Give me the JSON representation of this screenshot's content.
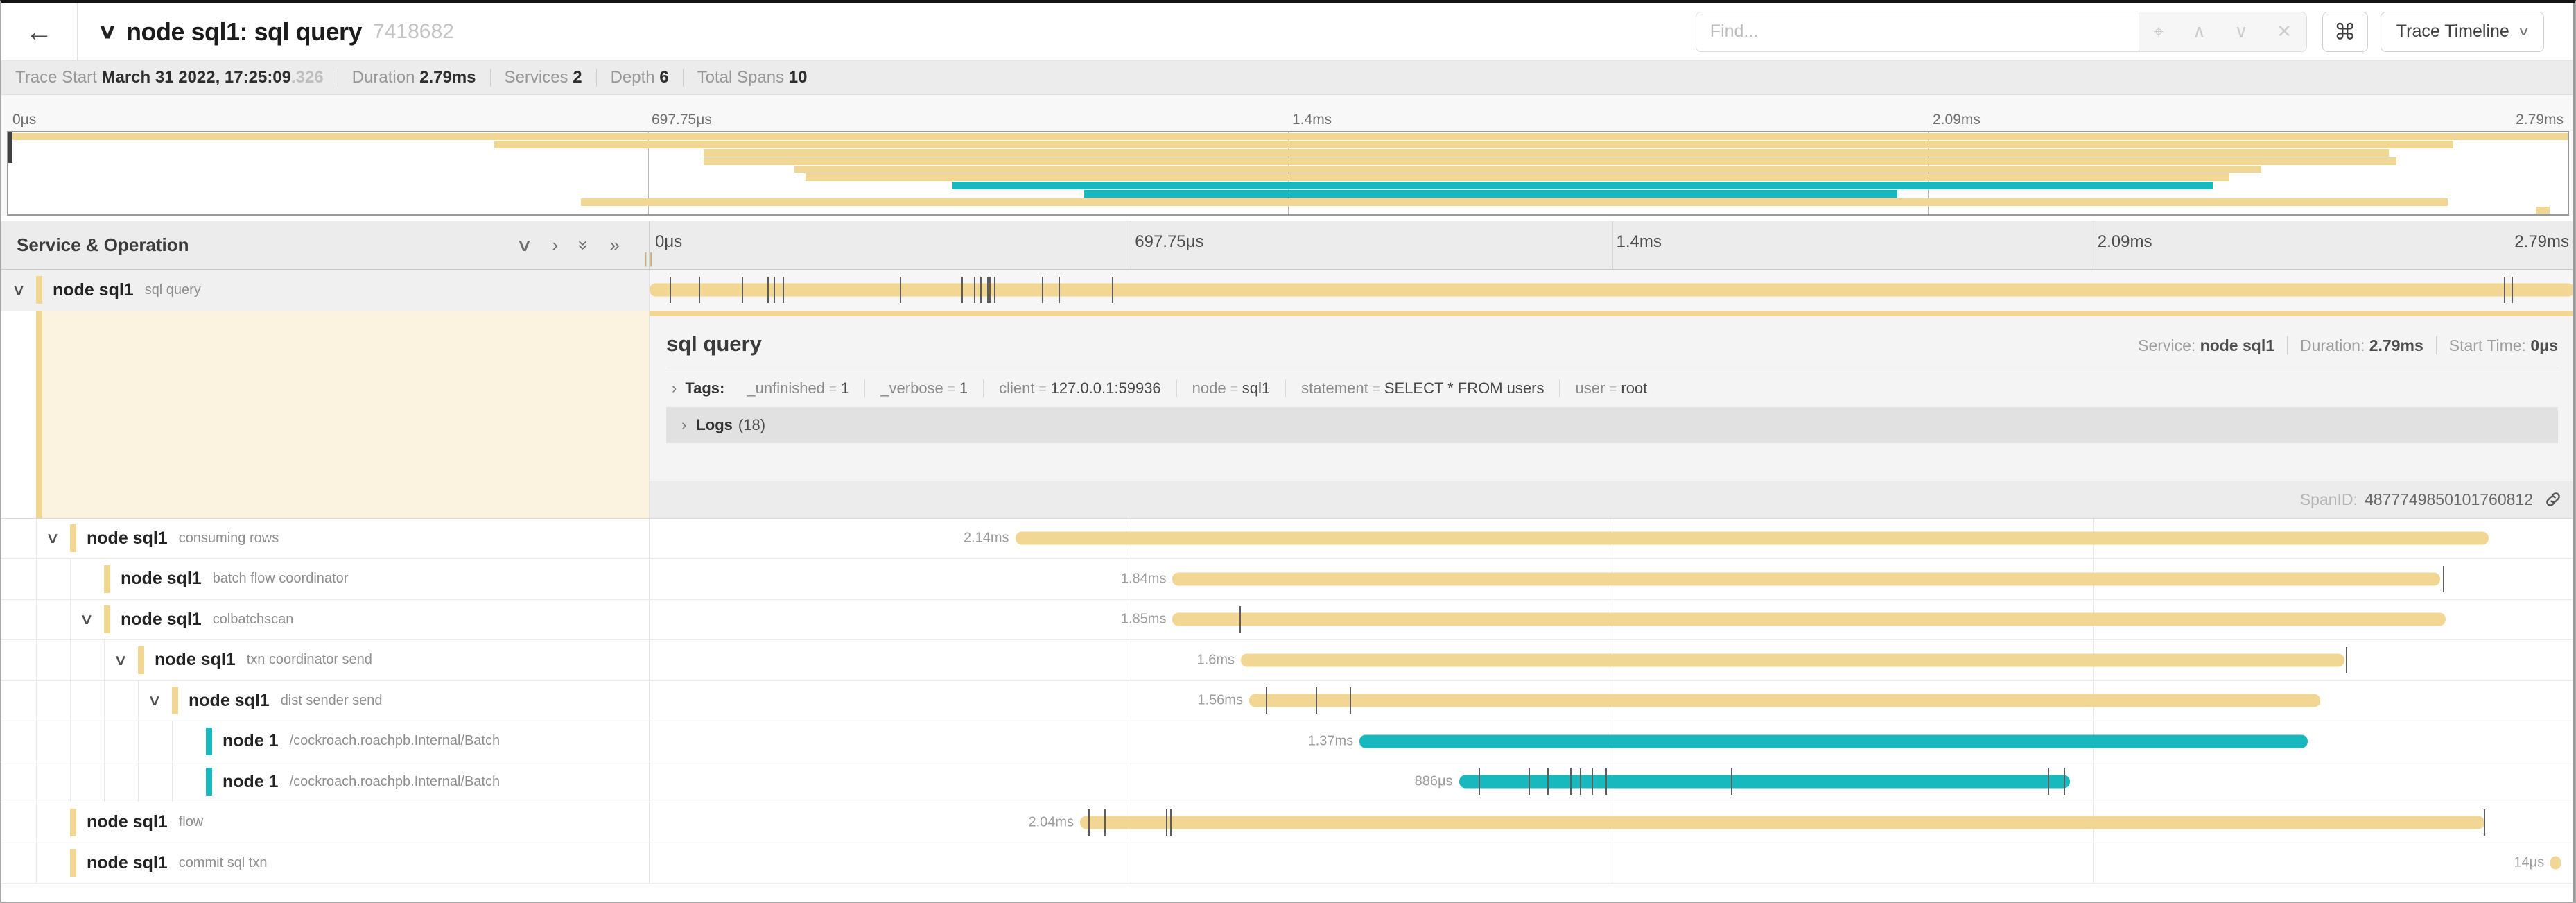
{
  "header": {
    "back_icon": "←",
    "collapse_chevron": "∨",
    "title": "node sql1: sql query",
    "trace_id_short": "7418682",
    "find_placeholder": "Find...",
    "find_icons": {
      "locate": "⌖",
      "prev": "∧",
      "next": "∨",
      "clear": "✕"
    },
    "shortcuts_icon": "⌘",
    "view_selector_label": "Trace Timeline",
    "view_selector_chevron": "∨"
  },
  "trace_meta": {
    "trace_start_label": "Trace Start",
    "trace_start_value": "March 31 2022, 17:25:09",
    "trace_start_fraction": ".326",
    "duration_label": "Duration",
    "duration_value": "2.79ms",
    "services_label": "Services",
    "services_value": "2",
    "depth_label": "Depth",
    "depth_value": "6",
    "total_spans_label": "Total Spans",
    "total_spans_value": "10"
  },
  "timeline_axis": {
    "ticks": [
      "0μs",
      "697.75μs",
      "1.4ms",
      "2.09ms",
      "2.79ms"
    ]
  },
  "columns_header": {
    "title": "Service & Operation",
    "icons": {
      "collapse_one": "∨",
      "expand_one": "›",
      "collapse_all": "»",
      "expand_all": "»"
    },
    "grip": "||"
  },
  "colors": {
    "tan": "#f2d694",
    "teal": "#17b8be",
    "tick": "#5d5d5d",
    "detail_cream": "#fbf3df"
  },
  "total_ms": 2.79,
  "spans": [
    {
      "service": "node sql1",
      "operation": "sql query",
      "depth": 0,
      "color": "tan",
      "start_ms": 0,
      "end_ms": 2.79,
      "duration_label": "",
      "ticks": [
        0.029,
        0.071,
        0.134,
        0.171,
        0.18,
        0.193,
        0.363,
        0.452,
        0.47,
        0.479,
        0.489,
        0.492,
        0.499,
        0.569,
        0.593,
        0.67,
        2.688,
        2.699
      ],
      "has_children": true,
      "selected": true
    },
    {
      "service": "node sql1",
      "operation": "consuming rows",
      "depth": 1,
      "color": "tan",
      "start_ms": 0.53,
      "end_ms": 2.665,
      "duration_label": "2.14ms",
      "ticks": [],
      "has_children": true,
      "selected": false
    },
    {
      "service": "node sql1",
      "operation": "batch flow coordinator",
      "depth": 2,
      "color": "tan",
      "start_ms": 0.758,
      "end_ms": 2.595,
      "duration_label": "1.84ms",
      "ticks": [
        2.599
      ],
      "has_children": false,
      "selected": false
    },
    {
      "service": "node sql1",
      "operation": "colbatchscan",
      "depth": 2,
      "color": "tan",
      "start_ms": 0.758,
      "end_ms": 2.603,
      "duration_label": "1.85ms",
      "ticks": [
        0.855
      ],
      "has_children": true,
      "selected": false
    },
    {
      "service": "node sql1",
      "operation": "txn coordinator send",
      "depth": 3,
      "color": "tan",
      "start_ms": 0.857,
      "end_ms": 2.456,
      "duration_label": "1.6ms",
      "ticks": [
        2.458
      ],
      "has_children": true,
      "selected": false
    },
    {
      "service": "node sql1",
      "operation": "dist sender send",
      "depth": 4,
      "color": "tan",
      "start_ms": 0.869,
      "end_ms": 2.421,
      "duration_label": "1.56ms",
      "ticks": [
        0.893,
        0.965,
        1.015
      ],
      "has_children": true,
      "selected": false
    },
    {
      "service": "node 1",
      "operation": "/cockroach.roachpb.Internal/Batch",
      "depth": 5,
      "color": "teal",
      "start_ms": 1.029,
      "end_ms": 2.403,
      "duration_label": "1.37ms",
      "ticks": [],
      "has_children": false,
      "selected": false
    },
    {
      "service": "node 1",
      "operation": "/cockroach.roachpb.Internal/Batch",
      "depth": 5,
      "color": "teal",
      "start_ms": 1.173,
      "end_ms": 2.059,
      "duration_label": "886μs",
      "ticks": [
        1.202,
        1.274,
        1.301,
        1.334,
        1.348,
        1.365,
        1.385,
        1.567,
        2.026,
        2.05
      ],
      "has_children": false,
      "selected": false
    },
    {
      "service": "node sql1",
      "operation": "flow",
      "depth": 1,
      "color": "tan",
      "start_ms": 0.624,
      "end_ms": 2.659,
      "duration_label": "2.04ms",
      "ticks": [
        0.636,
        0.659,
        0.748,
        0.755,
        2.658
      ],
      "has_children": false,
      "selected": false
    },
    {
      "service": "node sql1",
      "operation": "commit sql txn",
      "depth": 1,
      "color": "tan",
      "start_ms": 2.755,
      "end_ms": 2.77,
      "duration_label": "14μs",
      "ticks": [],
      "has_children": false,
      "selected": false
    }
  ],
  "detail": {
    "title": "sql query",
    "service_label": "Service:",
    "service_value": "node sql1",
    "duration_label": "Duration:",
    "duration_value": "2.79ms",
    "start_time_label": "Start Time:",
    "start_time_value": "0μs",
    "tags_chevron": "›",
    "tags_title": "Tags:",
    "tags": [
      {
        "key": "_unfinished",
        "value": "1"
      },
      {
        "key": "_verbose",
        "value": "1"
      },
      {
        "key": "client",
        "value": "127.0.0.1:59936"
      },
      {
        "key": "node",
        "value": "sql1"
      },
      {
        "key": "statement",
        "value": "SELECT * FROM users"
      },
      {
        "key": "user",
        "value": "root"
      }
    ],
    "logs_chevron": "›",
    "logs_title": "Logs",
    "logs_count": "(18)",
    "spanid_label": "SpanID:",
    "spanid_value": "4877749850101760812"
  }
}
